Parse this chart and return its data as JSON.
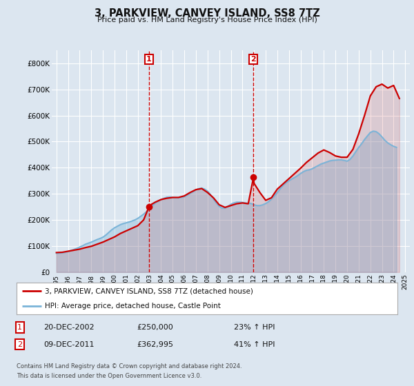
{
  "title": "3, PARKVIEW, CANVEY ISLAND, SS8 7TZ",
  "subtitle": "Price paid vs. HM Land Registry's House Price Index (HPI)",
  "background_color": "#dce6f0",
  "ylim": [
    0,
    850000
  ],
  "yticks": [
    0,
    100000,
    200000,
    300000,
    400000,
    500000,
    600000,
    700000,
    800000
  ],
  "ytick_labels": [
    "£0",
    "£100K",
    "£200K",
    "£300K",
    "£400K",
    "£500K",
    "£600K",
    "£700K",
    "£800K"
  ],
  "sale1": {
    "year": 2002.96,
    "price": 250000
  },
  "sale2": {
    "year": 2011.95,
    "price": 362995
  },
  "legend_entry1": "3, PARKVIEW, CANVEY ISLAND, SS8 7TZ (detached house)",
  "legend_entry2": "HPI: Average price, detached house, Castle Point",
  "footnote1": "Contains HM Land Registry data © Crown copyright and database right 2024.",
  "footnote2": "This data is licensed under the Open Government Licence v3.0.",
  "table_rows": [
    {
      "num": "1",
      "date": "20-DEC-2002",
      "price": "£250,000",
      "pct": "23% ↑ HPI"
    },
    {
      "num": "2",
      "date": "09-DEC-2011",
      "price": "£362,995",
      "pct": "41% ↑ HPI"
    }
  ],
  "hpi_color": "#7ab4d8",
  "price_color": "#cc0000",
  "hpi_data_x": [
    1995.0,
    1995.25,
    1995.5,
    1995.75,
    1996.0,
    1996.25,
    1996.5,
    1996.75,
    1997.0,
    1997.25,
    1997.5,
    1997.75,
    1998.0,
    1998.25,
    1998.5,
    1998.75,
    1999.0,
    1999.25,
    1999.5,
    1999.75,
    2000.0,
    2000.25,
    2000.5,
    2000.75,
    2001.0,
    2001.25,
    2001.5,
    2001.75,
    2002.0,
    2002.25,
    2002.5,
    2002.75,
    2003.0,
    2003.25,
    2003.5,
    2003.75,
    2004.0,
    2004.25,
    2004.5,
    2004.75,
    2005.0,
    2005.25,
    2005.5,
    2005.75,
    2006.0,
    2006.25,
    2006.5,
    2006.75,
    2007.0,
    2007.25,
    2007.5,
    2007.75,
    2008.0,
    2008.25,
    2008.5,
    2008.75,
    2009.0,
    2009.25,
    2009.5,
    2009.75,
    2010.0,
    2010.25,
    2010.5,
    2010.75,
    2011.0,
    2011.25,
    2011.5,
    2011.75,
    2012.0,
    2012.25,
    2012.5,
    2012.75,
    2013.0,
    2013.25,
    2013.5,
    2013.75,
    2014.0,
    2014.25,
    2014.5,
    2014.75,
    2015.0,
    2015.25,
    2015.5,
    2015.75,
    2016.0,
    2016.25,
    2016.5,
    2016.75,
    2017.0,
    2017.25,
    2017.5,
    2017.75,
    2018.0,
    2018.25,
    2018.5,
    2018.75,
    2019.0,
    2019.25,
    2019.5,
    2019.75,
    2020.0,
    2020.25,
    2020.5,
    2020.75,
    2021.0,
    2021.25,
    2021.5,
    2021.75,
    2022.0,
    2022.25,
    2022.5,
    2022.75,
    2023.0,
    2023.25,
    2023.5,
    2023.75,
    2024.0,
    2024.25
  ],
  "hpi_data_y": [
    72000,
    73000,
    74000,
    76000,
    79000,
    83000,
    87000,
    91000,
    96000,
    101000,
    107000,
    111000,
    115000,
    120000,
    125000,
    129000,
    134000,
    142000,
    152000,
    162000,
    170000,
    176000,
    182000,
    186000,
    189000,
    192000,
    196000,
    200000,
    206000,
    214000,
    222000,
    232000,
    242000,
    254000,
    265000,
    272000,
    278000,
    283000,
    287000,
    288000,
    286000,
    285000,
    285000,
    286000,
    289000,
    295000,
    302000,
    308000,
    315000,
    320000,
    322000,
    318000,
    310000,
    297000,
    280000,
    265000,
    252000,
    245000,
    245000,
    252000,
    260000,
    265000,
    268000,
    268000,
    267000,
    265000,
    264000,
    263000,
    258000,
    255000,
    255000,
    258000,
    263000,
    270000,
    280000,
    292000,
    305000,
    320000,
    333000,
    343000,
    350000,
    357000,
    363000,
    370000,
    378000,
    385000,
    390000,
    392000,
    396000,
    402000,
    408000,
    414000,
    418000,
    422000,
    426000,
    428000,
    429000,
    430000,
    430000,
    428000,
    425000,
    432000,
    445000,
    462000,
    478000,
    492000,
    508000,
    522000,
    535000,
    540000,
    538000,
    530000,
    518000,
    505000,
    495000,
    488000,
    482000,
    478000
  ],
  "price_data_x": [
    1995.0,
    1995.5,
    1996.0,
    1996.5,
    1997.0,
    1997.5,
    1998.0,
    1998.5,
    1999.0,
    1999.5,
    2000.0,
    2000.5,
    2001.0,
    2001.5,
    2002.0,
    2002.5,
    2002.96,
    2003.0,
    2003.5,
    2004.0,
    2004.5,
    2005.0,
    2005.5,
    2006.0,
    2006.5,
    2007.0,
    2007.5,
    2008.0,
    2008.5,
    2009.0,
    2009.5,
    2010.0,
    2010.5,
    2011.0,
    2011.5,
    2011.95,
    2012.0,
    2012.5,
    2013.0,
    2013.5,
    2014.0,
    2014.5,
    2015.0,
    2015.5,
    2016.0,
    2016.5,
    2017.0,
    2017.5,
    2018.0,
    2018.5,
    2019.0,
    2019.5,
    2020.0,
    2020.5,
    2021.0,
    2021.5,
    2022.0,
    2022.5,
    2023.0,
    2023.5,
    2024.0,
    2024.5
  ],
  "price_data_y": [
    75000,
    76000,
    80000,
    84000,
    88000,
    94000,
    99000,
    107000,
    115000,
    125000,
    135000,
    148000,
    158000,
    168000,
    178000,
    200000,
    250000,
    255000,
    268000,
    278000,
    283000,
    286000,
    286000,
    292000,
    305000,
    316000,
    320000,
    305000,
    285000,
    258000,
    248000,
    255000,
    262000,
    265000,
    262000,
    362995,
    340000,
    305000,
    275000,
    285000,
    318000,
    338000,
    358000,
    378000,
    398000,
    420000,
    438000,
    456000,
    468000,
    458000,
    445000,
    440000,
    440000,
    470000,
    530000,
    600000,
    675000,
    710000,
    720000,
    705000,
    715000,
    665000
  ]
}
